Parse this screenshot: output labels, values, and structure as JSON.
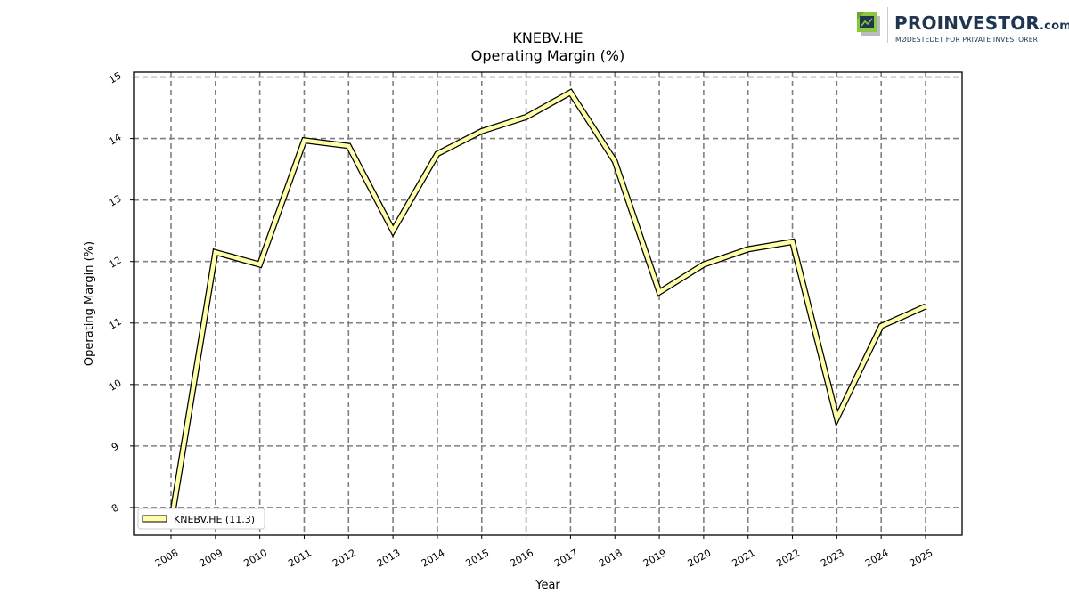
{
  "brand": {
    "name": "PROINVESTOR",
    "suffix": ".com",
    "tagline": "MØDESTEDET FOR PRIVATE INVESTORER"
  },
  "chart_data": {
    "type": "line",
    "title": "KNEBV.HE",
    "subtitle": "Operating Margin (%)",
    "xlabel": "Year",
    "ylabel": "Operating Margin (%)",
    "categories": [
      "2008",
      "2009",
      "2010",
      "2011",
      "2012",
      "2013",
      "2014",
      "2015",
      "2016",
      "2017",
      "2018",
      "2019",
      "2020",
      "2021",
      "2022",
      "2023",
      "2024",
      "2025"
    ],
    "yticks": [
      8,
      9,
      10,
      11,
      12,
      13,
      14,
      15
    ],
    "ylim": [
      7.55,
      15.08
    ],
    "grid": true,
    "legend_position": "lower-left",
    "series": [
      {
        "name": "KNEBV.HE (11.3)",
        "values": [
          7.75,
          12.15,
          11.95,
          13.97,
          13.88,
          12.5,
          13.75,
          14.12,
          14.35,
          14.75,
          13.63,
          11.5,
          11.95,
          12.2,
          12.32,
          9.45,
          10.95,
          11.27
        ],
        "color": "#ffffa8",
        "edge_color": "#000000"
      }
    ]
  }
}
